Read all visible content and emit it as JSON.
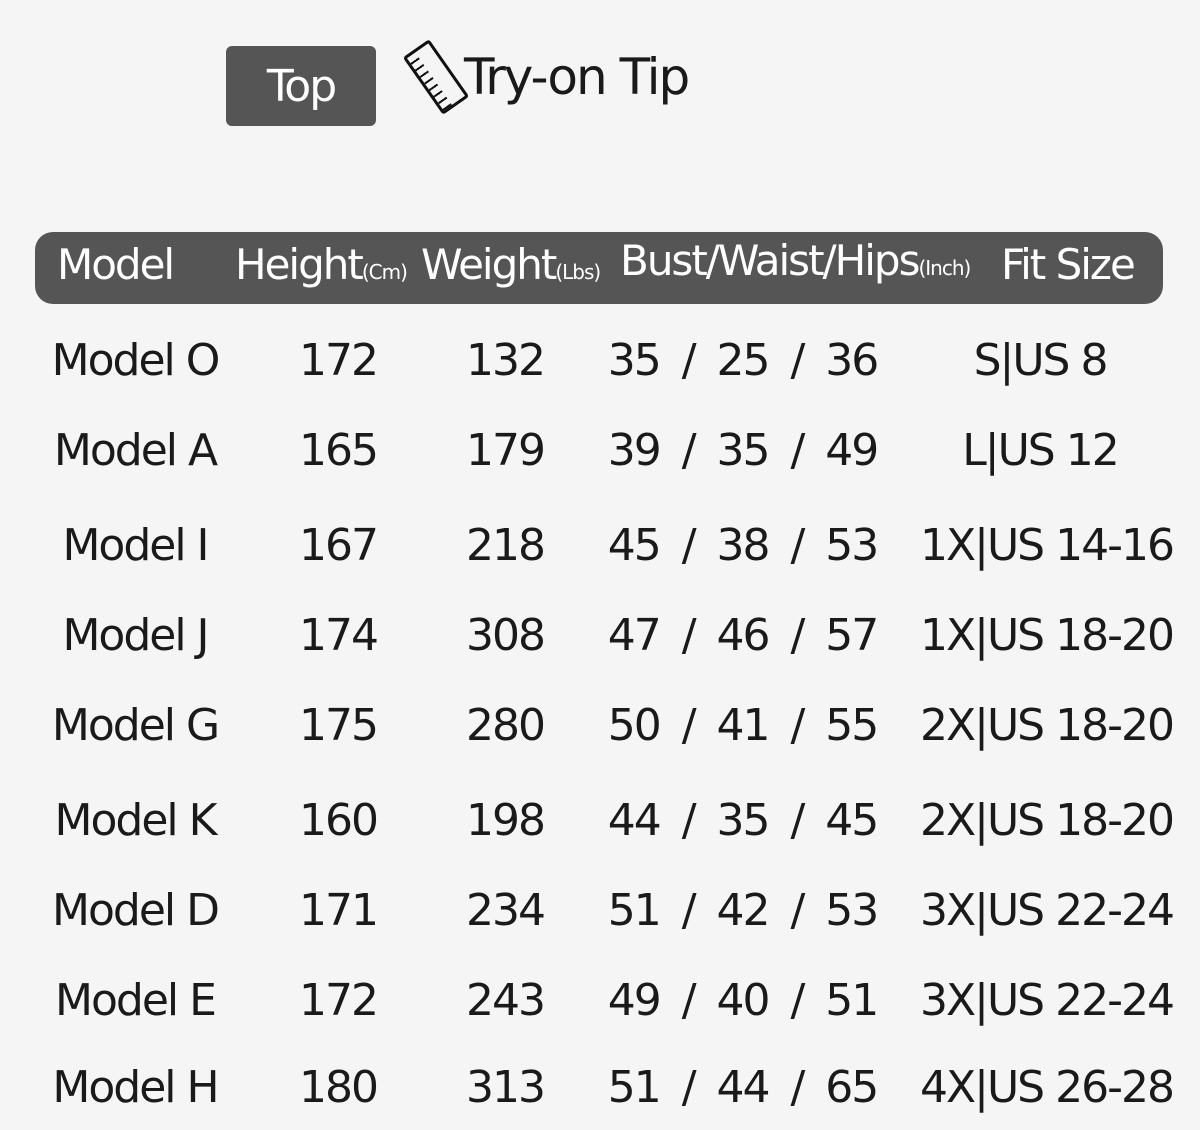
{
  "badge": "Top",
  "tip": {
    "icon": "ruler-icon",
    "label": "Try-on Tip"
  },
  "columns": [
    {
      "label": "Model",
      "unit": ""
    },
    {
      "label": "Height",
      "unit": "(Cm)"
    },
    {
      "label": "Weight",
      "unit": "(Lbs)"
    },
    {
      "label": "Bust/Waist/Hips",
      "unit": "(Inch)"
    },
    {
      "label": "Fit Size",
      "unit": ""
    }
  ],
  "rows": [
    [
      "Model O",
      "172",
      "132",
      "35 / 25 / 36",
      "S|US 8"
    ],
    [
      "Model A",
      "165",
      "179",
      "39 / 35 / 49",
      "L|US 12"
    ],
    [
      "Model I",
      "167",
      "218",
      "45 / 38 / 53",
      "1X|US 14-16"
    ],
    [
      "Model J",
      "174",
      "308",
      "47 / 46 / 57",
      "1X|US 18-20"
    ],
    [
      "Model G",
      "175",
      "280",
      "50 / 41 / 55",
      "2X|US 18-20"
    ],
    [
      "Model K",
      "160",
      "198",
      "44 / 35 / 45",
      "2X|US 18-20"
    ],
    [
      "Model D",
      "171",
      "234",
      "51 / 42 / 53",
      "3X|US 22-24"
    ],
    [
      "Model E",
      "172",
      "243",
      "49 / 40 / 51",
      "3X|US 22-24"
    ],
    [
      "Model H",
      "180",
      "313",
      "51 / 44 / 65",
      "4X|US 26-28"
    ]
  ],
  "colors": {
    "header_bg": "#555555",
    "background": "#f5f5f5"
  }
}
